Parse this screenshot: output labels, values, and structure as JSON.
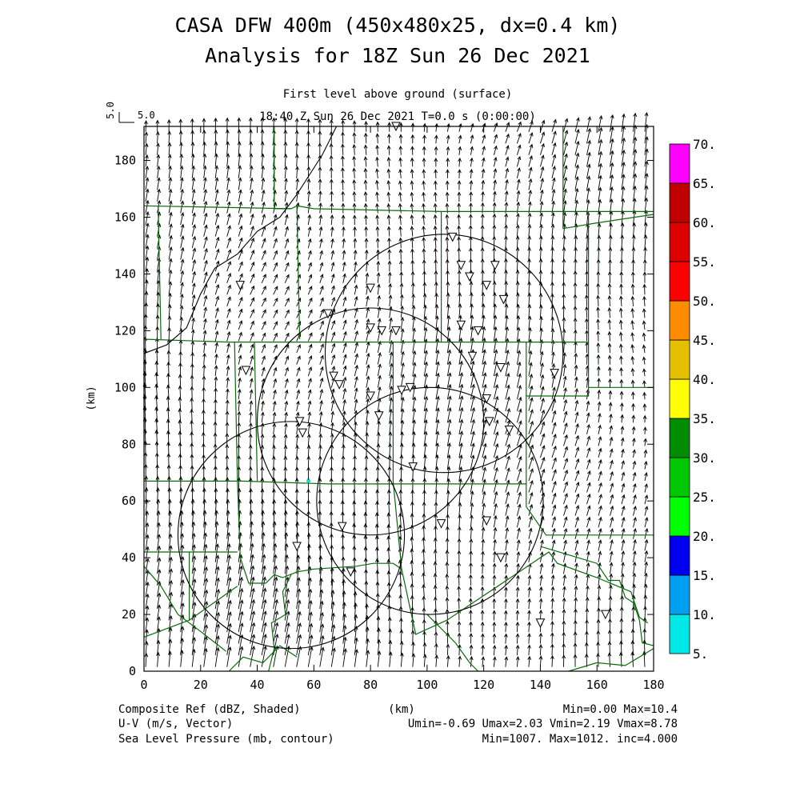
{
  "chart_data": {
    "type": "vector-field-map",
    "title": "CASA DFW 400m (450x480x25, dx=0.4 km)",
    "subtitle": "Analysis for 18Z Sun 26 Dec 2021",
    "level_label": "First level above ground (surface)",
    "time_label": "18:40 Z Sun 26 Dec 2021    T=0.0 s (0:00:00)",
    "ref_vector_left": "5.0",
    "ref_vector_right": "5.0",
    "xlabel": "(km)",
    "ylabel": "(km)",
    "xlim": [
      0,
      180
    ],
    "ylim": [
      0,
      192
    ],
    "x_ticks": [
      "0",
      "20",
      "40",
      "60",
      "80",
      "100",
      "120",
      "140",
      "160",
      "180"
    ],
    "y_ticks": [
      "0",
      "20",
      "40",
      "60",
      "80",
      "100",
      "120",
      "140",
      "160",
      "180"
    ],
    "colorbar": {
      "labels": [
        "5.",
        "10.",
        "15.",
        "20.",
        "25.",
        "30.",
        "35.",
        "40.",
        "45.",
        "50.",
        "55.",
        "60.",
        "65.",
        "70."
      ],
      "colors": [
        "#00e8e8",
        "#00a0f0",
        "#0000f0",
        "#00ff00",
        "#00c800",
        "#008c00",
        "#ffff00",
        "#e6c000",
        "#ff8c00",
        "#ff0000",
        "#dc0000",
        "#c00000",
        "#ff00ff"
      ]
    },
    "radar_circles": [
      {
        "cx": 106,
        "cy": 112,
        "r": 42
      },
      {
        "cx": 80,
        "cy": 88,
        "r": 40
      },
      {
        "cx": 101,
        "cy": 60,
        "r": 40
      },
      {
        "cx": 52,
        "cy": 48,
        "r": 40
      }
    ],
    "wind": {
      "u_mean": 0.5,
      "v_mean": 4.5
    },
    "notes": {
      "l1": "Composite Ref (dBZ, Shaded)",
      "l2": "U-V (m/s, Vector)",
      "l3": "Sea Level Pressure (mb, contour)",
      "unit": "(km)",
      "r1": "Min=0.00 Max=10.4",
      "r2": "Umin=-0.69 Umax=2.03 Vmin=2.19 Vmax=8.78",
      "r3": "Min=1007. Max=1012. inc=4.000"
    }
  }
}
